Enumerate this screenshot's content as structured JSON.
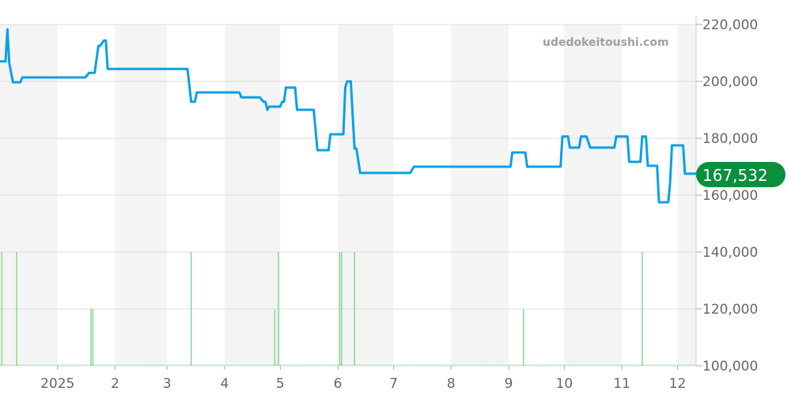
{
  "watermark": "udedokeitoushi.com",
  "last_price_label": "167,532",
  "colors": {
    "line": "#0aa0e6",
    "volume": "#8fd89a",
    "badge": "#0a8f3c",
    "band": "#f4f4f4",
    "grid": "#dddddd"
  },
  "chart_data": {
    "type": "line",
    "title": "",
    "xlabel": "",
    "ylabel": "",
    "xlim": [
      "2024-12-01",
      "2025-12-11"
    ],
    "ylim": [
      100000,
      220000
    ],
    "grid": true,
    "y_ticks": [
      100000,
      120000,
      140000,
      160000,
      180000,
      200000,
      220000
    ],
    "y_tick_labels": [
      "100,000",
      "120,000",
      "140,000",
      "160,000",
      "180,000",
      "200,000",
      "220,000"
    ],
    "x_ticks": [
      "2025-01-01",
      "2025-02-01",
      "2025-03-01",
      "2025-04-01",
      "2025-05-01",
      "2025-06-01",
      "2025-07-01",
      "2025-08-01",
      "2025-09-01",
      "2025-10-01",
      "2025-11-01",
      "2025-12-01"
    ],
    "x_tick_labels": [
      "2025",
      "2",
      "3",
      "4",
      "5",
      "6",
      "7",
      "8",
      "9",
      "10",
      "11",
      "12"
    ],
    "shaded_months": [
      [
        "2024-12-01",
        "2025-01-01"
      ],
      [
        "2025-02-01",
        "2025-03-01"
      ],
      [
        "2025-04-01",
        "2025-05-01"
      ],
      [
        "2025-06-01",
        "2025-07-01"
      ],
      [
        "2025-08-01",
        "2025-09-01"
      ],
      [
        "2025-10-01",
        "2025-11-01"
      ],
      [
        "2025-12-01",
        "2025-12-11"
      ]
    ],
    "last_value": 167532,
    "series": [
      {
        "points": [
          [
            "2024-12-01",
            207000
          ],
          [
            "2024-12-04",
            207000
          ],
          [
            "2024-12-05",
            218300
          ],
          [
            "2024-12-06",
            206500
          ],
          [
            "2024-12-08",
            199700
          ],
          [
            "2024-12-12",
            199700
          ],
          [
            "2024-12-13",
            201400
          ],
          [
            "2025-01-16",
            201400
          ],
          [
            "2025-01-18",
            203000
          ],
          [
            "2025-01-21",
            203000
          ],
          [
            "2025-01-23",
            212500
          ],
          [
            "2025-01-24",
            212500
          ],
          [
            "2025-01-26",
            214400
          ],
          [
            "2025-01-27",
            214400
          ],
          [
            "2025-01-28",
            204400
          ],
          [
            "2025-03-12",
            204400
          ],
          [
            "2025-03-14",
            192800
          ],
          [
            "2025-03-16",
            192800
          ],
          [
            "2025-03-17",
            196100
          ],
          [
            "2025-04-09",
            196100
          ],
          [
            "2025-04-10",
            194400
          ],
          [
            "2025-04-20",
            194400
          ],
          [
            "2025-04-22",
            192800
          ],
          [
            "2025-04-23",
            192800
          ],
          [
            "2025-04-24",
            190000
          ],
          [
            "2025-04-25",
            191100
          ],
          [
            "2025-05-01",
            191100
          ],
          [
            "2025-05-02",
            192800
          ],
          [
            "2025-05-03",
            192800
          ],
          [
            "2025-05-04",
            197800
          ],
          [
            "2025-05-09",
            197800
          ],
          [
            "2025-05-10",
            190000
          ],
          [
            "2025-05-19",
            190000
          ],
          [
            "2025-05-21",
            175800
          ],
          [
            "2025-05-27",
            175800
          ],
          [
            "2025-05-28",
            181400
          ],
          [
            "2025-06-04",
            181400
          ],
          [
            "2025-06-05",
            197800
          ],
          [
            "2025-06-06",
            200000
          ],
          [
            "2025-06-08",
            200000
          ],
          [
            "2025-06-10",
            176400
          ],
          [
            "2025-06-11",
            176400
          ],
          [
            "2025-06-13",
            167800
          ],
          [
            "2025-07-10",
            167800
          ],
          [
            "2025-07-12",
            170000
          ],
          [
            "2025-09-02",
            170000
          ],
          [
            "2025-09-03",
            175000
          ],
          [
            "2025-09-10",
            175000
          ],
          [
            "2025-09-11",
            170000
          ],
          [
            "2025-09-29",
            170000
          ],
          [
            "2025-09-30",
            180600
          ],
          [
            "2025-10-03",
            180600
          ],
          [
            "2025-10-04",
            176700
          ],
          [
            "2025-10-09",
            176700
          ],
          [
            "2025-10-10",
            180600
          ],
          [
            "2025-10-13",
            180600
          ],
          [
            "2025-10-15",
            176700
          ],
          [
            "2025-10-28",
            176700
          ],
          [
            "2025-10-29",
            180600
          ],
          [
            "2025-11-04",
            180600
          ],
          [
            "2025-11-05",
            171700
          ],
          [
            "2025-11-11",
            171700
          ],
          [
            "2025-11-12",
            180600
          ],
          [
            "2025-11-14",
            180600
          ],
          [
            "2025-11-15",
            170300
          ],
          [
            "2025-11-20",
            170300
          ],
          [
            "2025-11-21",
            157500
          ],
          [
            "2025-11-26",
            157500
          ],
          [
            "2025-11-27",
            164000
          ],
          [
            "2025-11-28",
            177500
          ],
          [
            "2025-12-04",
            177500
          ],
          [
            "2025-12-05",
            167532
          ],
          [
            "2025-12-11",
            167532
          ]
        ]
      }
    ],
    "volume": {
      "max": 2,
      "bars": [
        [
          "2024-12-02",
          2
        ],
        [
          "2024-12-10",
          2
        ],
        [
          "2025-01-19",
          1
        ],
        [
          "2025-01-20",
          1
        ],
        [
          "2025-03-14",
          2
        ],
        [
          "2025-04-28",
          1
        ],
        [
          "2025-04-30",
          2
        ],
        [
          "2025-06-02",
          2
        ],
        [
          "2025-06-03",
          2
        ],
        [
          "2025-06-10",
          2
        ],
        [
          "2025-09-09",
          1
        ],
        [
          "2025-11-12",
          2
        ]
      ]
    }
  }
}
